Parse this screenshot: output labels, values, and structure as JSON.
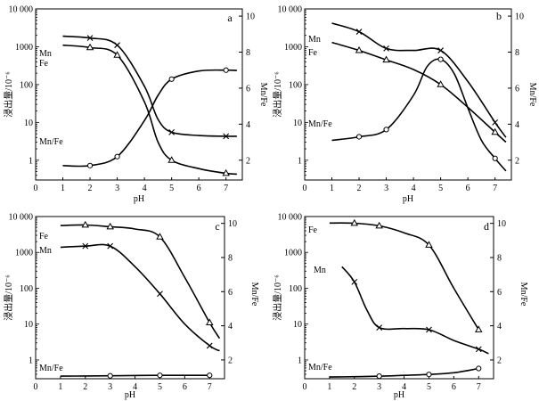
{
  "chart_data": [
    {
      "type": "line",
      "panel_label": "a",
      "xlabel": "pH",
      "ylabel": "浸出量/10⁻⁶",
      "y2label": "Mn/Fe",
      "xlim": [
        0,
        7.6
      ],
      "xticks": [
        0,
        1,
        2,
        3,
        4,
        5,
        6,
        7
      ],
      "ylim": [
        0.3,
        10000
      ],
      "yscale": "log",
      "yticks": [
        1,
        10,
        100,
        1000,
        10000
      ],
      "ytick_labels": [
        "1",
        "10",
        "100",
        "1000",
        "10 000"
      ],
      "y2lim": [
        0.9,
        10.4
      ],
      "y2ticks": [
        2,
        4,
        6,
        8,
        10
      ],
      "series": [
        {
          "name": "Mn",
          "axis": "left",
          "marker": "x",
          "x": [
            2,
            3,
            5,
            7
          ],
          "y": [
            1700,
            1100,
            5.5,
            4.3
          ],
          "curve": [
            [
              1,
              1900
            ],
            [
              2,
              1700
            ],
            [
              3,
              1100
            ],
            [
              4,
              90
            ],
            [
              4.5,
              12
            ],
            [
              5,
              5.5
            ],
            [
              6,
              4.5
            ],
            [
              7,
              4.3
            ],
            [
              7.4,
              4.3
            ]
          ]
        },
        {
          "name": "Fe",
          "axis": "left",
          "marker": "triangle",
          "x": [
            2,
            3,
            5,
            7
          ],
          "y": [
            950,
            600,
            1,
            0.45
          ],
          "curve": [
            [
              1,
              1100
            ],
            [
              2,
              950
            ],
            [
              3,
              600
            ],
            [
              4,
              35
            ],
            [
              4.5,
              3
            ],
            [
              5,
              1
            ],
            [
              6,
              0.6
            ],
            [
              7,
              0.45
            ],
            [
              7.4,
              0.43
            ]
          ]
        },
        {
          "name": "Mn/Fe",
          "axis": "right",
          "marker": "circle",
          "x": [
            2,
            3,
            5,
            7
          ],
          "y": [
            1.7,
            2.2,
            6.5,
            7
          ],
          "curve": [
            [
              1,
              1.7
            ],
            [
              2,
              1.7
            ],
            [
              3,
              2.2
            ],
            [
              4,
              4.2
            ],
            [
              4.5,
              5.6
            ],
            [
              5,
              6.5
            ],
            [
              6,
              6.95
            ],
            [
              7,
              7
            ],
            [
              7.4,
              6.98
            ]
          ]
        }
      ]
    },
    {
      "type": "line",
      "panel_label": "b",
      "xlabel": "pH",
      "ylabel": "浸出量/10⁻⁶",
      "y2label": "Mn/Fe",
      "xlim": [
        0,
        7.6
      ],
      "xticks": [
        0,
        1,
        2,
        3,
        4,
        5,
        6,
        7
      ],
      "ylim": [
        0.3,
        10000
      ],
      "yscale": "log",
      "yticks": [
        1,
        10,
        100,
        1000,
        10000
      ],
      "ytick_labels": [
        "1",
        "10",
        "100",
        "1000",
        "10 000"
      ],
      "y2lim": [
        0.9,
        10.4
      ],
      "y2ticks": [
        2,
        4,
        6,
        8,
        10
      ],
      "series": [
        {
          "name": "Mn",
          "axis": "left",
          "marker": "x",
          "x": [
            2,
            3,
            5,
            7
          ],
          "y": [
            2500,
            900,
            800,
            10
          ],
          "curve": [
            [
              1,
              4200
            ],
            [
              2,
              2500
            ],
            [
              3,
              900
            ],
            [
              4,
              800
            ],
            [
              5,
              800
            ],
            [
              6,
              120
            ],
            [
              7,
              10
            ],
            [
              7.4,
              4
            ]
          ]
        },
        {
          "name": "Fe",
          "axis": "left",
          "marker": "triangle",
          "x": [
            2,
            3,
            5,
            7
          ],
          "y": [
            800,
            450,
            100,
            5.5
          ],
          "curve": [
            [
              1,
              1300
            ],
            [
              2,
              800
            ],
            [
              3,
              450
            ],
            [
              4,
              250
            ],
            [
              5,
              100
            ],
            [
              6,
              25
            ],
            [
              7,
              5.5
            ],
            [
              7.4,
              3
            ]
          ]
        },
        {
          "name": "Mn/Fe",
          "axis": "right",
          "marker": "circle",
          "x": [
            2,
            3,
            5,
            7
          ],
          "y": [
            3.3,
            3.7,
            7.6,
            2.1
          ],
          "curve": [
            [
              1,
              3.1
            ],
            [
              2,
              3.3
            ],
            [
              3,
              3.7
            ],
            [
              4,
              5.6
            ],
            [
              4.5,
              7.2
            ],
            [
              5,
              7.6
            ],
            [
              5.5,
              6.8
            ],
            [
              6,
              4.9
            ],
            [
              6.5,
              3.1
            ],
            [
              7,
              2.1
            ],
            [
              7.4,
              1.4
            ]
          ]
        }
      ]
    },
    {
      "type": "line",
      "panel_label": "c",
      "xlabel": "pH",
      "ylabel": "浸出量/10⁻⁶",
      "y2label": "Mn/Fe",
      "xlim": [
        0,
        7.6
      ],
      "xticks": [
        0,
        1,
        2,
        3,
        4,
        5,
        6,
        7
      ],
      "ylim": [
        0.3,
        10000
      ],
      "yscale": "log",
      "yticks": [
        1,
        10,
        100,
        1000,
        10000
      ],
      "ytick_labels": [
        "1",
        "10",
        "100",
        "1000",
        "10 000"
      ],
      "y2lim": [
        0.9,
        10.4
      ],
      "y2ticks": [
        2,
        4,
        6,
        8,
        10
      ],
      "series": [
        {
          "name": "Fe",
          "axis": "left",
          "marker": "triangle",
          "x": [
            2,
            3,
            5,
            7
          ],
          "y": [
            5800,
            5200,
            2700,
            11
          ],
          "curve": [
            [
              1,
              5600
            ],
            [
              2,
              5800
            ],
            [
              3,
              5200
            ],
            [
              4,
              4500
            ],
            [
              5,
              2700
            ],
            [
              6,
              200
            ],
            [
              7,
              11
            ],
            [
              7.4,
              4
            ]
          ]
        },
        {
          "name": "Mn",
          "axis": "left",
          "marker": "x",
          "x": [
            2,
            3,
            5,
            7
          ],
          "y": [
            1500,
            1500,
            70,
            2.5
          ],
          "curve": [
            [
              1,
              1400
            ],
            [
              2,
              1500
            ],
            [
              3,
              1500
            ],
            [
              4,
              400
            ],
            [
              5,
              70
            ],
            [
              6,
              10
            ],
            [
              7,
              2.5
            ],
            [
              7.4,
              1.8
            ]
          ]
        },
        {
          "name": "Mn/Fe",
          "axis": "right",
          "marker": "circle",
          "x": [
            3,
            5,
            7
          ],
          "y": [
            1.07,
            1.1,
            1.1
          ],
          "curve": [
            [
              1,
              1.05
            ],
            [
              2,
              1.06
            ],
            [
              3,
              1.07
            ],
            [
              5,
              1.1
            ],
            [
              7,
              1.1
            ]
          ]
        }
      ]
    },
    {
      "type": "line",
      "panel_label": "d",
      "xlabel": "pH",
      "ylabel": "浸出量/10⁻⁶",
      "y2label": "Mn/Fe",
      "xlim": [
        0,
        7.6
      ],
      "xticks": [
        0,
        1,
        2,
        3,
        4,
        5,
        6,
        7
      ],
      "ylim": [
        0.3,
        10000
      ],
      "yscale": "log",
      "yticks": [
        1,
        10,
        100,
        1000,
        10000
      ],
      "ytick_labels": [
        "1",
        "10",
        "100",
        "1000",
        "10 000"
      ],
      "y2lim": [
        0.9,
        10.4
      ],
      "y2ticks": [
        2,
        4,
        6,
        8,
        10
      ],
      "series": [
        {
          "name": "Fe",
          "axis": "left",
          "marker": "triangle",
          "x": [
            2,
            3,
            5,
            7
          ],
          "y": [
            6500,
            5500,
            1600,
            7
          ],
          "curve": [
            [
              1,
              6600
            ],
            [
              2,
              6500
            ],
            [
              3,
              5500
            ],
            [
              4,
              3500
            ],
            [
              5,
              1600
            ],
            [
              6,
              100
            ],
            [
              7,
              7
            ]
          ]
        },
        {
          "name": "Mn",
          "axis": "left",
          "marker": "x",
          "x": [
            2,
            3,
            5,
            7
          ],
          "y": [
            150,
            8,
            7,
            2
          ],
          "curve": [
            [
              1.5,
              400
            ],
            [
              2,
              150
            ],
            [
              2.5,
              25
            ],
            [
              3,
              8
            ],
            [
              4,
              7.5
            ],
            [
              5,
              7
            ],
            [
              6,
              3.5
            ],
            [
              7,
              2
            ],
            [
              7.4,
              1.5
            ]
          ]
        },
        {
          "name": "Mn/Fe",
          "axis": "right",
          "marker": "circle",
          "x": [
            3,
            5,
            7
          ],
          "y": [
            1.05,
            1.15,
            1.5
          ],
          "curve": [
            [
              1,
              1
            ],
            [
              2,
              1.02
            ],
            [
              3,
              1.05
            ],
            [
              4,
              1.1
            ],
            [
              5,
              1.15
            ],
            [
              6,
              1.25
            ],
            [
              7,
              1.5
            ]
          ]
        }
      ]
    }
  ]
}
